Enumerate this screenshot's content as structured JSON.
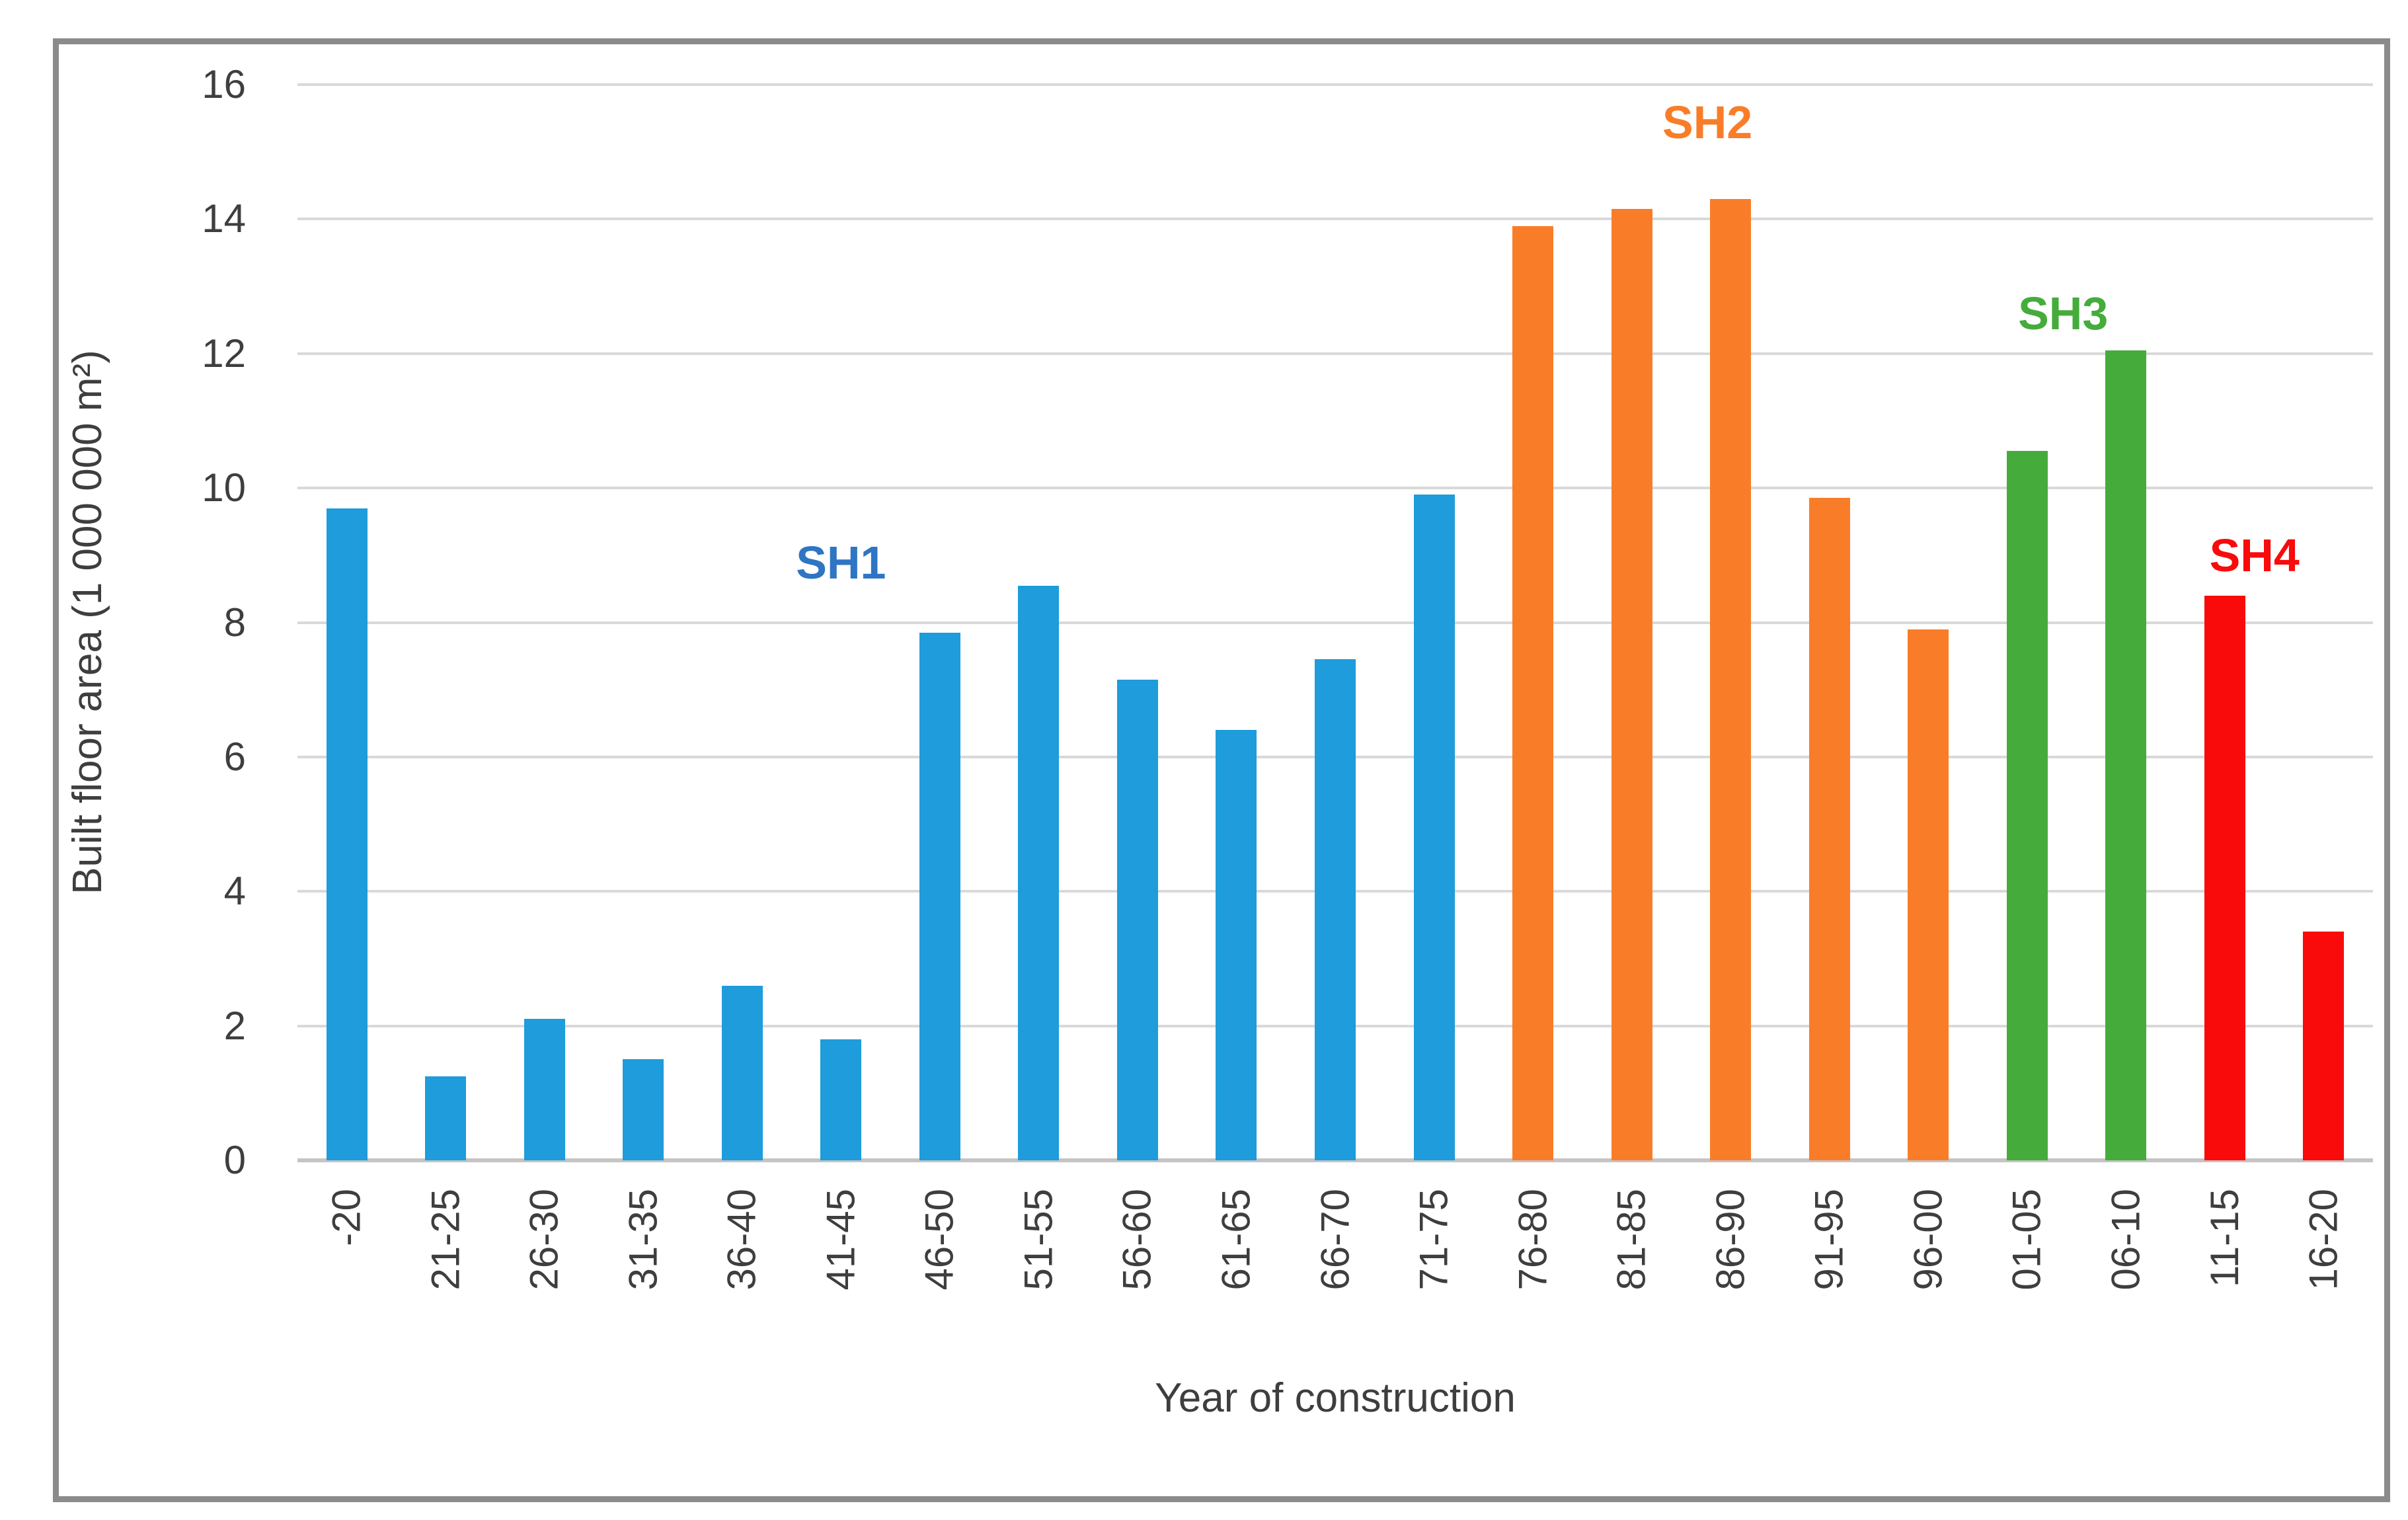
{
  "chart_data": {
    "type": "bar",
    "title": "",
    "categories": [
      "-20",
      "21-25",
      "26-30",
      "31-35",
      "36-40",
      "41-45",
      "46-50",
      "51-55",
      "56-60",
      "61-65",
      "66-70",
      "71-75",
      "76-80",
      "81-85",
      "86-90",
      "91-95",
      "96-00",
      "01-05",
      "06-10",
      "11-15",
      "16-20"
    ],
    "values": [
      9.7,
      1.25,
      2.1,
      1.5,
      2.6,
      1.8,
      7.85,
      8.55,
      7.15,
      6.4,
      7.45,
      9.9,
      13.9,
      14.15,
      14.3,
      9.85,
      7.9,
      10.55,
      12.05,
      8.4,
      3.4
    ],
    "groups": [
      {
        "name": "SH1",
        "color": "#1E9CDB",
        "first_index": 0,
        "last_index": 11
      },
      {
        "name": "SH2",
        "color": "#F97D28",
        "first_index": 12,
        "last_index": 16
      },
      {
        "name": "SH3",
        "color": "#45AC3C",
        "first_index": 17,
        "last_index": 18
      },
      {
        "name": "SH4",
        "color": "#F90B0B",
        "first_index": 19,
        "last_index": 20
      }
    ],
    "annotations": [
      {
        "text": "SH1",
        "color": "#2E75C4",
        "slot_index": 5,
        "dx": 0,
        "bottom_value": 8.5
      },
      {
        "text": "SH2",
        "color": "#F97D28",
        "slot_index": 14,
        "dx": -35,
        "bottom_value": 15.05
      },
      {
        "text": "SH3",
        "color": "#45AC3C",
        "slot_index": 18,
        "dx": -95,
        "bottom_value": 12.2
      },
      {
        "text": "SH4",
        "color": "#F90B0B",
        "slot_index": 19,
        "dx": 45,
        "bottom_value": 8.6
      }
    ],
    "xlabel": "Year of construction",
    "ylabel": "Built floor area (1 000 000 m²)",
    "ylim": [
      0,
      16
    ],
    "yticks": [
      0,
      2,
      4,
      6,
      8,
      10,
      12,
      14,
      16
    ],
    "grid": true,
    "legend_position": "none"
  },
  "style": {
    "border_color": "#8B8B8B",
    "gridline_color": "#D9D9D9",
    "axis_line_color": "#C6C4C4",
    "text_color": "#3E3E3E"
  }
}
